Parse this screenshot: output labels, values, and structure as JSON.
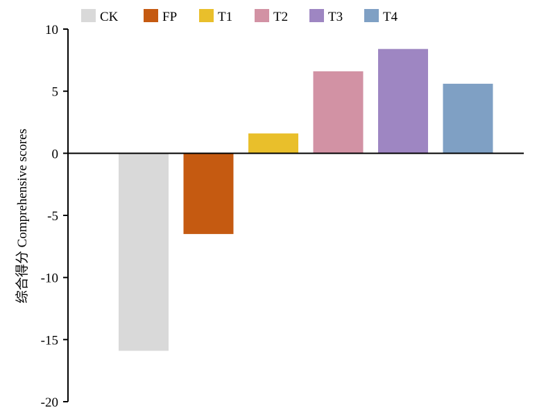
{
  "chart_data": {
    "type": "bar",
    "categories": [
      "CK",
      "FP",
      "T1",
      "T2",
      "T3",
      "T4"
    ],
    "values": [
      -15.9,
      -6.5,
      1.6,
      6.6,
      8.4,
      5.6
    ],
    "colors": [
      "#d9d9d9",
      "#c55a11",
      "#e9bf2b",
      "#d292a4",
      "#9e86c2",
      "#7fa0c4"
    ],
    "legend": [
      "CK",
      "FP",
      "T1",
      "T2",
      "T3",
      "T4"
    ],
    "legend_position": "top",
    "title": "",
    "xlabel": "",
    "ylabel": "综合得分 Comprehensive scores",
    "ylim": [
      -20,
      10
    ],
    "yticks": [
      10,
      5,
      0,
      -5,
      -10,
      -15,
      -20
    ],
    "ytick_labels": [
      "10",
      "5",
      "0",
      "-5",
      "-10",
      "-15",
      "-20"
    ],
    "grid": false
  }
}
